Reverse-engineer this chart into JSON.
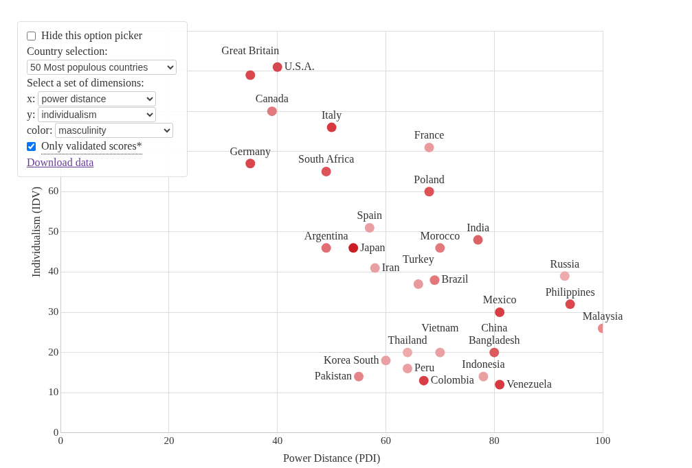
{
  "chart_data": {
    "type": "scatter",
    "xlabel": "Power Distance (PDI)",
    "ylabel": "Individualism (IDV)",
    "xlim": [
      0,
      100
    ],
    "xticks": [
      0,
      20,
      40,
      60,
      80,
      100
    ],
    "ylim": [
      0,
      100
    ],
    "yticks": [
      0,
      10,
      20,
      30,
      40,
      50,
      60,
      {
        "value": 70,
        "label": null
      },
      {
        "value": 80,
        "label": null
      },
      {
        "value": 90,
        "label": null
      },
      {
        "value": 100,
        "label": null
      }
    ],
    "grid": true,
    "legend": false,
    "marker": "circle",
    "x": [
      35,
      40,
      39,
      50,
      35,
      49,
      68,
      68,
      57,
      49,
      54,
      58,
      70,
      77,
      66,
      69,
      93,
      94,
      81,
      100,
      80,
      64,
      70,
      60,
      64,
      55,
      67,
      78,
      81
    ],
    "values": [
      89,
      91,
      80,
      76,
      67,
      65,
      71,
      60,
      51,
      46,
      46,
      41,
      46,
      48,
      37,
      38,
      39,
      32,
      30,
      26,
      20,
      20,
      20,
      18,
      16,
      14,
      13,
      14,
      12
    ],
    "colors": [
      "#d9474f",
      "#d64850",
      "#e07a7e",
      "#d63a40",
      "#d9474c",
      "#dc5459",
      "#ea9a9c",
      "#dc5257",
      "#eaa0a2",
      "#e06e72",
      "#c81e24",
      "#eaa0a2",
      "#e2797c",
      "#dc6266",
      "#e8999b",
      "#e2787b",
      "#eeaaac",
      "#d9474c",
      "#d63e44",
      "#e68a8d",
      "#dc5a5e",
      "#eeaaac",
      "#eaa0a2",
      "#eaa0a2",
      "#eaa0a2",
      "#e68589",
      "#d63e44",
      "#eaa0a2",
      "#d63a40"
    ],
    "annotations": [
      "Hide this option picker",
      "Country selection:",
      "50 Most populous countries",
      "Select a set of dimensions:",
      "x:",
      "power distance",
      "y:",
      "individualism",
      "color:",
      "masculinity",
      "Only validated scores*",
      "Download data",
      {
        "text": "Great Britain",
        "x": 35,
        "y": 89
      },
      {
        "text": "U.S.A.",
        "x": 40,
        "y": 91
      },
      {
        "text": "Canada",
        "x": 39,
        "y": 80
      },
      {
        "text": "Italy",
        "x": 50,
        "y": 76
      },
      {
        "text": "Germany",
        "x": 35,
        "y": 67
      },
      {
        "text": "South Africa",
        "x": 49,
        "y": 65
      },
      {
        "text": "France",
        "x": 68,
        "y": 71
      },
      {
        "text": "Poland",
        "x": 68,
        "y": 60
      },
      {
        "text": "Spain",
        "x": 57,
        "y": 51
      },
      {
        "text": "Argentina",
        "x": 49,
        "y": 46
      },
      {
        "text": "Japan",
        "x": 54,
        "y": 46
      },
      {
        "text": "Iran",
        "x": 58,
        "y": 41
      },
      {
        "text": "Morocco",
        "x": 70,
        "y": 46
      },
      {
        "text": "India",
        "x": 77,
        "y": 48
      },
      {
        "text": "Turkey",
        "x": 66,
        "y": 37
      },
      {
        "text": "Brazil",
        "x": 69,
        "y": 38
      },
      {
        "text": "Russia",
        "x": 93,
        "y": 39
      },
      {
        "text": "Philippines",
        "x": 94,
        "y": 32
      },
      {
        "text": "Mexico",
        "x": 81,
        "y": 30
      },
      {
        "text": "Malaysia",
        "x": 100,
        "y": 26
      },
      {
        "text": "Bangladesh",
        "x": 80,
        "y": 20
      },
      {
        "text": "China",
        "x": 80,
        "y": 20
      },
      {
        "text": "Thailand",
        "x": 64,
        "y": 20
      },
      {
        "text": "Vietnam",
        "x": 70,
        "y": 20
      },
      {
        "text": "Korea South",
        "x": 60,
        "y": 18
      },
      {
        "text": "Peru",
        "x": 64,
        "y": 16
      },
      {
        "text": "Pakistan",
        "x": 55,
        "y": 14
      },
      {
        "text": "Colombia",
        "x": 67,
        "y": 13
      },
      {
        "text": "Indonesia",
        "x": 78,
        "y": 14
      },
      {
        "text": "Venezuela",
        "x": 81,
        "y": 12
      }
    ]
  }
}
